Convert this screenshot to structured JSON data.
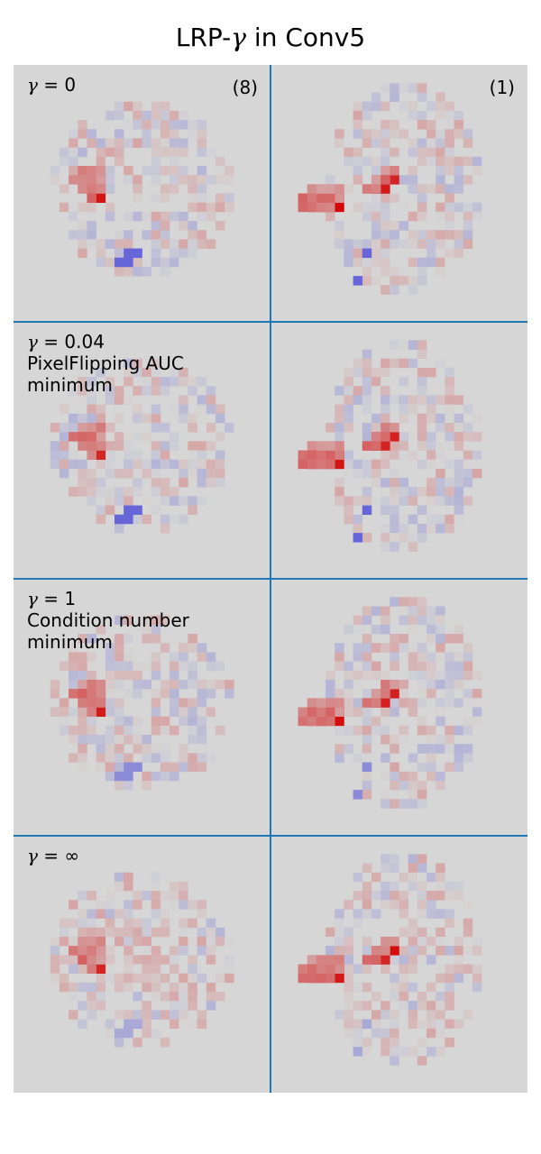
{
  "title_prefix": "LRP-",
  "title_symbol": "γ",
  "title_suffix": " in Conv5",
  "colors": {
    "divider": "#1f77b4",
    "panel_background": "#d6d6d6",
    "positive": "#d40000",
    "negative": "#4040d8"
  },
  "chart_data": {
    "type": "heatmap",
    "title": "LRP-γ in Conv5",
    "grid": "4 rows × 2 columns of relevance heatmaps",
    "columns": [
      {
        "tag": "(8)"
      },
      {
        "tag": "(1)"
      }
    ],
    "rows": [
      {
        "gamma_symbol": "γ",
        "gamma_value": " = 0",
        "note1": "",
        "note2": ""
      },
      {
        "gamma_symbol": "γ",
        "gamma_value": " = 0.04",
        "note1": "PixelFlipping AUC",
        "note2": "minimum"
      },
      {
        "gamma_symbol": "γ",
        "gamma_value": " = 1",
        "note1": "Condition number",
        "note2": "minimum"
      },
      {
        "gamma_symbol": "γ",
        "gamma_value": " = ∞",
        "note1": "",
        "note2": ""
      }
    ],
    "colormap": "bwr (blue negative, red positive)"
  }
}
